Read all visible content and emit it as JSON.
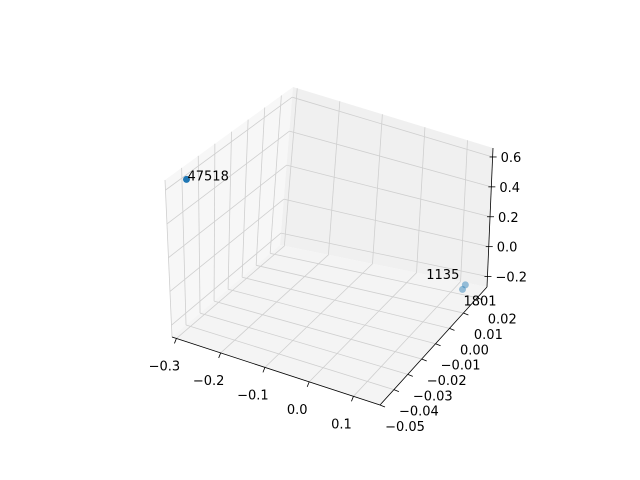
{
  "chart_data": {
    "type": "scatter3d",
    "title": "",
    "xlabel": "",
    "ylabel": "",
    "zlabel": "",
    "xlim": [
      -0.31,
      0.16
    ],
    "ylim": [
      -0.05,
      0.027
    ],
    "zlim": [
      -0.27,
      0.66
    ],
    "xticks": [
      "−0.3",
      "−0.2",
      "−0.1",
      "0.0",
      "0.1"
    ],
    "xtick_values": [
      -0.3,
      -0.2,
      -0.1,
      0.0,
      0.1
    ],
    "yticks": [
      "−0.05",
      "−0.04",
      "−0.03",
      "−0.02",
      "−0.01",
      "0.00",
      "0.01",
      "0.02"
    ],
    "ytick_values": [
      -0.05,
      -0.04,
      -0.03,
      -0.02,
      -0.01,
      0.0,
      0.01,
      0.02
    ],
    "zticks": [
      "−0.2",
      "0.0",
      "0.2",
      "0.4",
      "0.6"
    ],
    "ztick_values": [
      -0.2,
      0.0,
      0.2,
      0.4,
      0.6
    ],
    "grid": true,
    "point_color": "#1f77b4",
    "points": [
      {
        "label": "47518",
        "x": -0.3,
        "y": -0.04,
        "z": 0.6
      },
      {
        "label": "1135",
        "x": 0.12,
        "y": 0.024,
        "z": -0.25
      },
      {
        "label": "1801",
        "x": 0.12,
        "y": 0.022,
        "z": -0.26
      }
    ]
  }
}
